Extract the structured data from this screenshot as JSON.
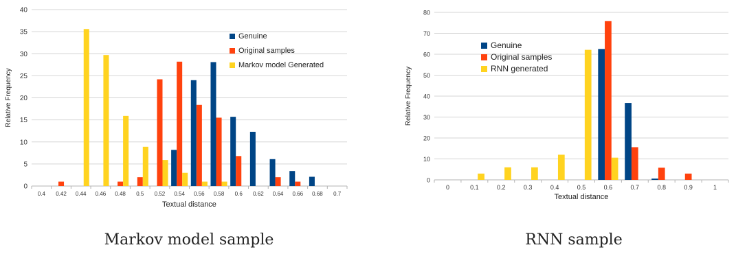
{
  "chart_data": [
    {
      "type": "bar",
      "caption": "Markov model sample",
      "xlabel": "Textual distance",
      "ylabel": "Relative Frequency",
      "ylim": [
        0,
        40
      ],
      "yticks": [
        0,
        5,
        10,
        15,
        20,
        25,
        30,
        35,
        40
      ],
      "categories": [
        "0.4",
        "0.42",
        "0.44",
        "0.46",
        "0.48",
        "0.5",
        "0.52",
        "0.54",
        "0.56",
        "0.58",
        "0.6",
        "0.62",
        "0.64",
        "0.66",
        "0.68",
        "0.7"
      ],
      "grid": true,
      "legend_position": "top-right",
      "series": [
        {
          "name": "Genuine",
          "color": "#004586",
          "values": [
            0,
            0,
            0,
            0,
            0,
            0,
            0,
            8.2,
            24,
            28.1,
            15.7,
            12.3,
            6.1,
            3.4,
            2.1,
            0
          ]
        },
        {
          "name": "Original samples",
          "color": "#ff420e",
          "values": [
            0,
            1,
            0,
            0,
            1,
            2,
            24.2,
            28.2,
            18.4,
            15.5,
            6.8,
            0,
            2,
            1,
            0,
            0
          ]
        },
        {
          "name": "Markov model Generated",
          "color": "#ffd320",
          "values": [
            0,
            0,
            35.6,
            29.7,
            15.9,
            8.9,
            5.9,
            3,
            1,
            1,
            0,
            0,
            0,
            0,
            0,
            0
          ]
        }
      ]
    },
    {
      "type": "bar",
      "caption": "RNN sample",
      "xlabel": "Textual distance",
      "ylabel": "Relative Frequency",
      "ylim": [
        0,
        80
      ],
      "yticks": [
        0,
        10,
        20,
        30,
        40,
        50,
        60,
        70,
        80
      ],
      "categories": [
        "0",
        "0.1",
        "0.2",
        "0.3",
        "0.4",
        "0.5",
        "0.6",
        "0.7",
        "0.8",
        "0.9",
        "1"
      ],
      "grid": true,
      "legend_position": "top-left",
      "series": [
        {
          "name": "Genuine",
          "color": "#004586",
          "values": [
            0,
            0,
            0,
            0,
            0,
            0,
            62.5,
            36.7,
            0.6,
            0,
            0
          ]
        },
        {
          "name": "Original samples",
          "color": "#ff420e",
          "values": [
            0,
            0,
            0,
            0,
            0,
            0,
            75.8,
            15.6,
            5.8,
            3,
            0
          ]
        },
        {
          "name": "RNN generated",
          "color": "#ffd320",
          "values": [
            0,
            3,
            6,
            6,
            12,
            62.1,
            10.6,
            0,
            0,
            0,
            0
          ]
        }
      ]
    }
  ]
}
